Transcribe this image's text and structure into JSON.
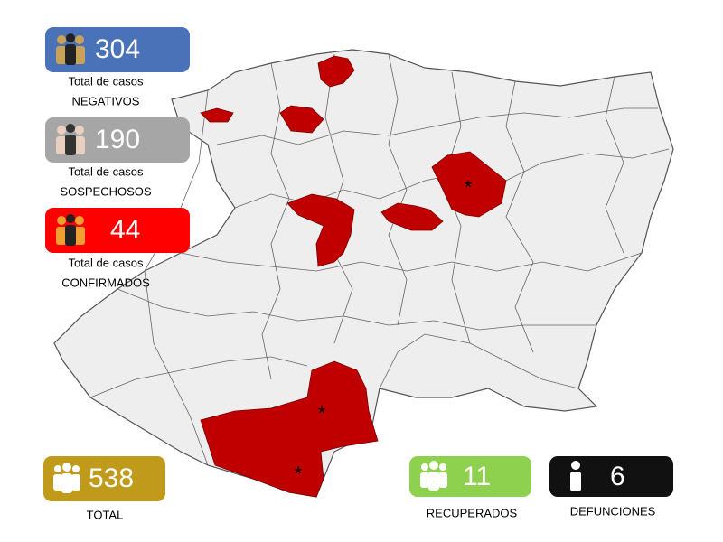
{
  "badges": [
    {
      "number": 304,
      "line1": "Total de casos",
      "line2": "NEGATIVOS"
    },
    {
      "number": 190,
      "line1": "Total de casos",
      "line2": "SOSPECHOSOS"
    },
    {
      "number": 44,
      "line1": "Total de casos",
      "line2": "CONFIRMADOS"
    },
    {
      "number": 538,
      "line1": "TOTAL"
    },
    {
      "number": 11,
      "line1": "RECUPERADOS"
    },
    {
      "number": 6,
      "line1": "DEFUNCIONES"
    }
  ]
}
